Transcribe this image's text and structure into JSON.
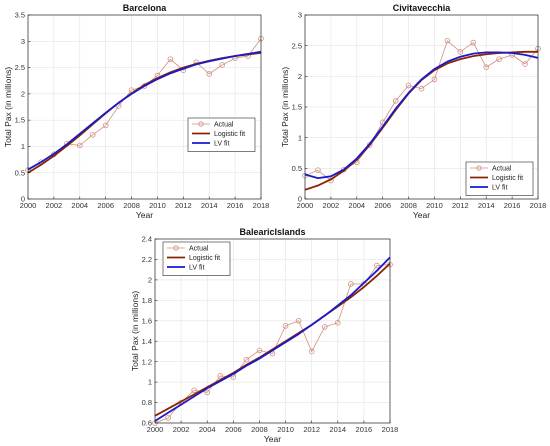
{
  "chart_data": [
    {
      "type": "line",
      "title": "Barcelona",
      "xlabel": "Year",
      "ylabel": "Total Pax (in millions)",
      "xlim": [
        2000,
        2018
      ],
      "ylim": [
        0,
        3.5
      ],
      "xticks": [
        2000,
        2002,
        2004,
        2006,
        2008,
        2010,
        2012,
        2014,
        2016,
        2018
      ],
      "yticks": [
        0,
        0.5,
        1,
        1.5,
        2,
        2.5,
        3,
        3.5
      ],
      "grid": true,
      "legend_position": "top-right",
      "series": [
        {
          "name": "Actual",
          "style": "markers",
          "color": "#cf8f80",
          "x": [
            2000,
            2001,
            2002,
            2003,
            2004,
            2005,
            2006,
            2007,
            2008,
            2009,
            2010,
            2011,
            2012,
            2013,
            2014,
            2015,
            2016,
            2017,
            2018
          ],
          "values": [
            0.55,
            0.7,
            0.85,
            1.05,
            1.02,
            1.22,
            1.4,
            1.77,
            2.07,
            2.15,
            2.35,
            2.66,
            2.45,
            2.6,
            2.38,
            2.55,
            2.68,
            2.72,
            3.05
          ]
        },
        {
          "name": "Logistic fit",
          "style": "line",
          "color": "#8b2500",
          "x": [
            2000,
            2001,
            2002,
            2003,
            2004,
            2005,
            2006,
            2007,
            2008,
            2009,
            2010,
            2011,
            2012,
            2013,
            2014,
            2015,
            2016,
            2017,
            2018
          ],
          "values": [
            0.5,
            0.65,
            0.82,
            1.01,
            1.21,
            1.42,
            1.63,
            1.83,
            2.01,
            2.17,
            2.3,
            2.41,
            2.5,
            2.57,
            2.63,
            2.68,
            2.72,
            2.75,
            2.78
          ]
        },
        {
          "name": "LV fit",
          "style": "line",
          "color": "#1a1acc",
          "x": [
            2000,
            2001,
            2002,
            2003,
            2004,
            2005,
            2006,
            2007,
            2008,
            2009,
            2010,
            2011,
            2012,
            2013,
            2014,
            2015,
            2016,
            2017,
            2018
          ],
          "values": [
            0.56,
            0.7,
            0.86,
            1.04,
            1.24,
            1.44,
            1.64,
            1.83,
            2.0,
            2.15,
            2.28,
            2.39,
            2.48,
            2.56,
            2.62,
            2.67,
            2.72,
            2.76,
            2.8
          ]
        }
      ]
    },
    {
      "type": "line",
      "title": "Civitavecchia",
      "xlabel": "Year",
      "ylabel": "Total Pax (in millions)",
      "xlim": [
        2000,
        2018
      ],
      "ylim": [
        0,
        3
      ],
      "xticks": [
        2000,
        2002,
        2004,
        2006,
        2008,
        2010,
        2012,
        2014,
        2016,
        2018
      ],
      "yticks": [
        0,
        0.5,
        1,
        1.5,
        2,
        2.5,
        3
      ],
      "grid": true,
      "legend_position": "bottom-right",
      "series": [
        {
          "name": "Actual",
          "style": "markers",
          "color": "#cf8f80",
          "x": [
            2000,
            2001,
            2002,
            2003,
            2004,
            2005,
            2006,
            2007,
            2008,
            2009,
            2010,
            2011,
            2012,
            2013,
            2014,
            2015,
            2016,
            2017,
            2018
          ],
          "values": [
            0.38,
            0.47,
            0.3,
            0.48,
            0.6,
            0.88,
            1.25,
            1.6,
            1.85,
            1.8,
            1.95,
            2.58,
            2.4,
            2.55,
            2.15,
            2.28,
            2.35,
            2.2,
            2.45
          ]
        },
        {
          "name": "Logistic fit",
          "style": "line",
          "color": "#8b2500",
          "x": [
            2000,
            2001,
            2002,
            2003,
            2004,
            2005,
            2006,
            2007,
            2008,
            2009,
            2010,
            2011,
            2012,
            2013,
            2014,
            2015,
            2016,
            2017,
            2018
          ],
          "values": [
            0.15,
            0.22,
            0.32,
            0.46,
            0.64,
            0.88,
            1.16,
            1.45,
            1.72,
            1.94,
            2.1,
            2.21,
            2.28,
            2.33,
            2.36,
            2.38,
            2.39,
            2.4,
            2.4
          ]
        },
        {
          "name": "LV fit",
          "style": "line",
          "color": "#1a1acc",
          "x": [
            2000,
            2001,
            2002,
            2003,
            2004,
            2005,
            2006,
            2007,
            2008,
            2009,
            2010,
            2011,
            2012,
            2013,
            2014,
            2015,
            2016,
            2017,
            2018
          ],
          "values": [
            0.4,
            0.34,
            0.37,
            0.48,
            0.66,
            0.9,
            1.18,
            1.47,
            1.73,
            1.95,
            2.12,
            2.24,
            2.32,
            2.37,
            2.39,
            2.39,
            2.38,
            2.35,
            2.3
          ]
        }
      ]
    },
    {
      "type": "line",
      "title": "BalearicIslands",
      "xlabel": "Year",
      "ylabel": "Total Pax (in millions)",
      "xlim": [
        2000,
        2018
      ],
      "ylim": [
        0.6,
        2.4
      ],
      "xticks": [
        2000,
        2002,
        2004,
        2006,
        2008,
        2010,
        2012,
        2014,
        2016,
        2018
      ],
      "yticks": [
        0.6,
        0.8,
        1,
        1.2,
        1.4,
        1.6,
        1.8,
        2,
        2.2,
        2.4
      ],
      "grid": true,
      "legend_position": "top-left",
      "series": [
        {
          "name": "Actual",
          "style": "markers",
          "color": "#cf8f80",
          "x": [
            2000,
            2001,
            2002,
            2003,
            2004,
            2005,
            2006,
            2007,
            2008,
            2009,
            2010,
            2011,
            2012,
            2013,
            2014,
            2015,
            2016,
            2017,
            2018
          ],
          "values": [
            0.6,
            0.65,
            0.8,
            0.92,
            0.9,
            1.06,
            1.05,
            1.22,
            1.31,
            1.28,
            1.55,
            1.6,
            1.3,
            1.54,
            1.58,
            1.96,
            1.96,
            2.14,
            2.15
          ]
        },
        {
          "name": "Logistic fit",
          "style": "line",
          "color": "#8b2500",
          "x": [
            2000,
            2001,
            2002,
            2003,
            2004,
            2005,
            2006,
            2007,
            2008,
            2009,
            2010,
            2011,
            2012,
            2013,
            2014,
            2015,
            2016,
            2017,
            2018
          ],
          "values": [
            0.67,
            0.74,
            0.81,
            0.88,
            0.95,
            1.02,
            1.09,
            1.17,
            1.24,
            1.32,
            1.4,
            1.48,
            1.56,
            1.65,
            1.74,
            1.83,
            1.93,
            2.04,
            2.16
          ]
        },
        {
          "name": "LV fit",
          "style": "line",
          "color": "#1a1acc",
          "x": [
            2000,
            2001,
            2002,
            2003,
            2004,
            2005,
            2006,
            2007,
            2008,
            2009,
            2010,
            2011,
            2012,
            2013,
            2014,
            2015,
            2016,
            2017,
            2018
          ],
          "values": [
            0.62,
            0.7,
            0.78,
            0.86,
            0.94,
            1.01,
            1.08,
            1.16,
            1.23,
            1.31,
            1.39,
            1.47,
            1.56,
            1.65,
            1.75,
            1.85,
            1.97,
            2.09,
            2.22
          ]
        }
      ]
    }
  ]
}
